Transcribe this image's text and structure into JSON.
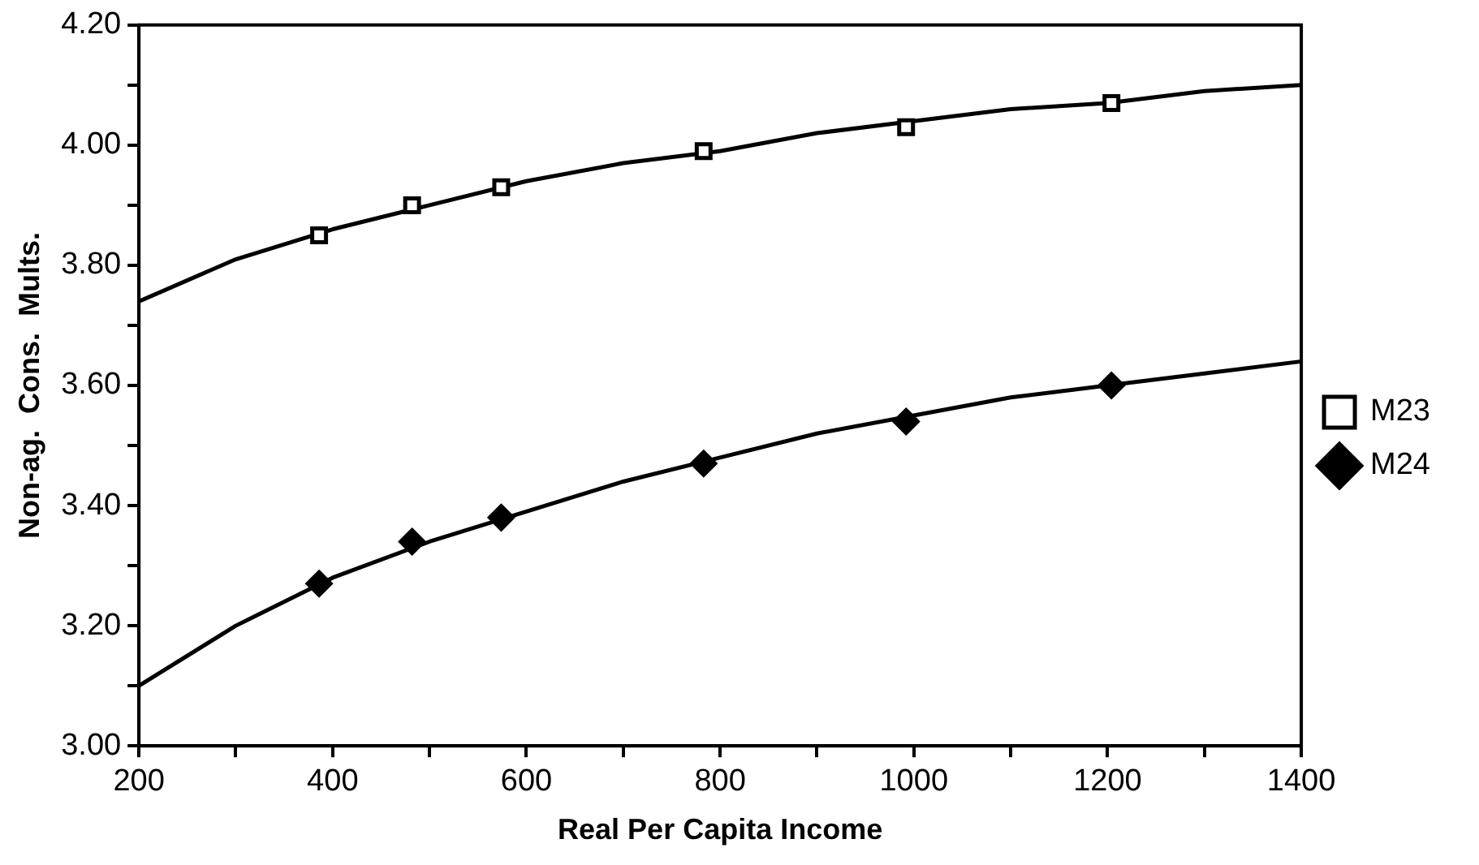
{
  "chart_data": {
    "type": "scatter",
    "xlabel": "Real Per Capita Income",
    "ylabel": "Non-ag.  Cons.  Mults.",
    "x": [
      386,
      482,
      574,
      783,
      992,
      1204
    ],
    "series": [
      {
        "name": "M23",
        "color": "#000000",
        "marker": "square",
        "values": [
          3.85,
          3.9,
          3.93,
          3.99,
          4.03,
          4.07
        ]
      },
      {
        "name": "M24",
        "color": "#000000",
        "marker": "diamond",
        "values": [
          3.27,
          3.34,
          3.38,
          3.47,
          3.54,
          3.6
        ]
      },
      {
        "type": "line",
        "color": "#000000",
        "x": [
          200,
          300,
          400,
          500,
          600,
          700,
          800,
          900,
          1000,
          1100,
          1200,
          1300,
          1400
        ],
        "values": [
          3.74,
          3.81,
          3.86,
          3.9,
          3.94,
          3.97,
          3.99,
          4.02,
          4.04,
          4.06,
          4.07,
          4.09,
          4.1
        ]
      },
      {
        "type": "line",
        "color": "#000000",
        "x": [
          200,
          300,
          400,
          500,
          600,
          700,
          800,
          900,
          1000,
          1100,
          1200,
          1300,
          1400
        ],
        "values": [
          3.1,
          3.2,
          3.28,
          3.34,
          3.39,
          3.44,
          3.48,
          3.52,
          3.55,
          3.58,
          3.6,
          3.62,
          3.64
        ]
      }
    ],
    "xlim": [
      200,
      1400
    ],
    "xticks": [
      200,
      {
        "value": 300,
        "label": null
      },
      400,
      {
        "value": 500,
        "label": null
      },
      600,
      {
        "value": 700,
        "label": null
      },
      800,
      {
        "value": 900,
        "label": null
      },
      1000,
      {
        "value": 1100,
        "label": null
      },
      1200,
      {
        "value": 1300,
        "label": null
      },
      1400
    ],
    "ylim": [
      3.0,
      4.2
    ],
    "yticks": [
      {
        "value": 3.0,
        "label": "3.00"
      },
      {
        "value": 3.1,
        "label": null
      },
      {
        "value": 3.2,
        "label": "3.20"
      },
      {
        "value": 3.3,
        "label": null
      },
      {
        "value": 3.4,
        "label": "3.40"
      },
      {
        "value": 3.5,
        "label": null
      },
      {
        "value": 3.6,
        "label": "3.60"
      },
      {
        "value": 3.7,
        "label": null
      },
      {
        "value": 3.8,
        "label": "3.80"
      },
      {
        "value": 3.9,
        "label": null
      },
      {
        "value": 4.0,
        "label": "4.00"
      },
      {
        "value": 4.1,
        "label": null
      },
      {
        "value": 4.2,
        "label": "4.20"
      }
    ],
    "grid": false,
    "legend": "right",
    "line_style": "solid"
  }
}
